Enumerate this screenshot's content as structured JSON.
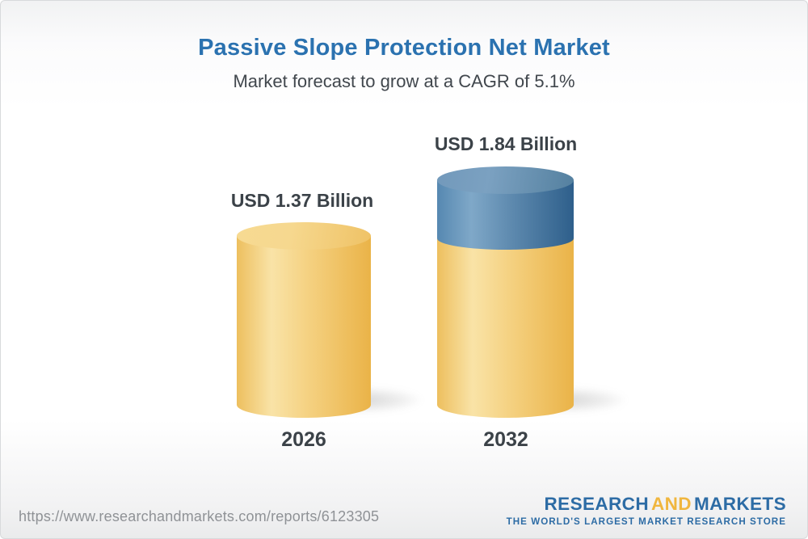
{
  "page": {
    "title": "Passive Slope Protection Net Market",
    "subtitle": "Market forecast to grow at a CAGR of 5.1%"
  },
  "chart_data": {
    "type": "bar",
    "variant": "3d-cylinder",
    "categories": [
      "2026",
      "2032"
    ],
    "values": [
      1.37,
      1.84
    ],
    "unit": "USD Billion",
    "value_labels": [
      "USD 1.37 Billion",
      "USD 1.84 Billion"
    ],
    "cagr": "5.1%",
    "title": "Passive Slope Protection Net Market",
    "subtitle": "Market forecast to grow at a CAGR of 5.1%",
    "xlabel": "",
    "ylabel": "",
    "legend_position": "none",
    "grid": false,
    "axes_visible": false,
    "notes": "2032 cylinder is gold up to the 2026 value with a blue segment on top representing growth",
    "colors": {
      "bar_gold": "#F0C564",
      "bar_gold_highlight": "#F9E3A7",
      "bar_gold_dark": "#EAB348",
      "growth_blue": "#4E7EA8",
      "growth_blue_dark": "#2E5F8B",
      "title_blue": "#2B72B0",
      "label_gray": "#3B4248"
    }
  },
  "bars": [
    {
      "year": "2026",
      "label": "USD 1.37 Billion"
    },
    {
      "year": "2032",
      "label": "USD 1.84 Billion"
    }
  ],
  "footer": {
    "url": "https://www.researchandmarkets.com/reports/6123305",
    "logo": {
      "part1": "RESEARCH",
      "part2": "AND",
      "part3": "MARKETS",
      "tagline": "THE WORLD'S LARGEST MARKET RESEARCH STORE"
    }
  }
}
